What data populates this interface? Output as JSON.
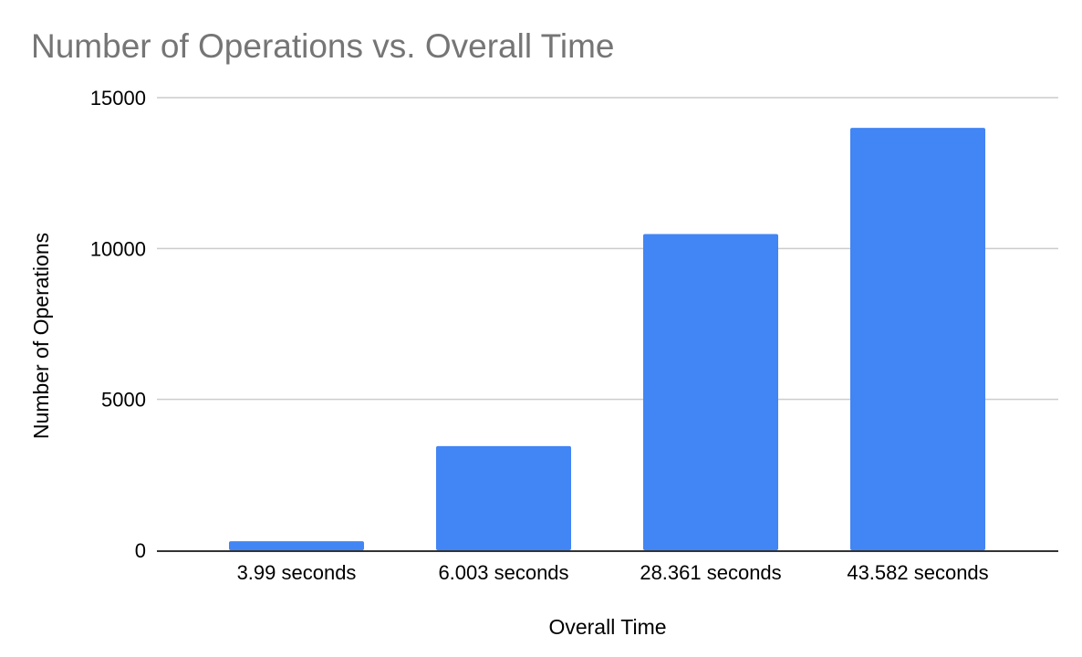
{
  "chart_data": {
    "type": "bar",
    "title": "Number of Operations vs. Overall Time",
    "xlabel": "Overall Time",
    "ylabel": "Number of Operations",
    "categories": [
      "3.99 seconds",
      "6.003 seconds",
      "28.361 seconds",
      "43.582 seconds"
    ],
    "values": [
      300,
      3450,
      10480,
      14000
    ],
    "ylim": [
      0,
      15000
    ],
    "yticks": [
      0,
      5000,
      10000,
      15000
    ],
    "ytick_labels": [
      "0",
      "5000",
      "10000",
      "15000"
    ],
    "grid": true,
    "legend": "none",
    "colors": {
      "bar": "#4285f4",
      "title": "#757575",
      "grid": "#cccccc",
      "baseline": "#333333"
    }
  }
}
